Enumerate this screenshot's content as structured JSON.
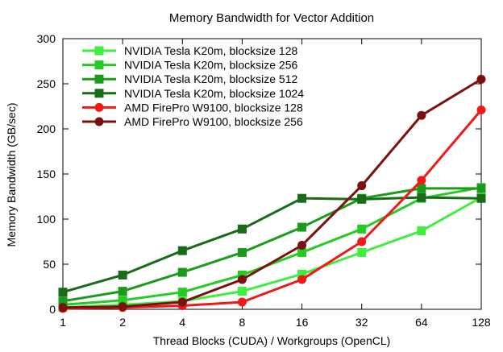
{
  "chart_data": {
    "type": "line",
    "title": "Memory Bandwidth for Vector Addition",
    "xlabel": "Thread Blocks (CUDA) / Workgroups (OpenCL)",
    "ylabel": "Memory Bandwidth (GB/sec)",
    "x_scale": "log2",
    "categories": [
      "1",
      "2",
      "4",
      "8",
      "16",
      "32",
      "64",
      "128"
    ],
    "x": [
      1,
      2,
      4,
      8,
      16,
      32,
      64,
      128
    ],
    "ylim": [
      0,
      300
    ],
    "yticks": [
      "0",
      "50",
      "100",
      "150",
      "200",
      "250",
      "300"
    ],
    "ytick_values": [
      0,
      50,
      100,
      150,
      200,
      250,
      300
    ],
    "grid": false,
    "legend_position": "top-left",
    "series": [
      {
        "name": "NVIDIA Tesla K20m, blocksize 128",
        "marker": "square",
        "color": "#40ee40",
        "values": [
          2,
          5,
          9,
          20,
          39,
          63,
          87,
          124
        ]
      },
      {
        "name": "NVIDIA Tesla K20m, blocksize 256",
        "marker": "square",
        "color": "#22cc22",
        "values": [
          5,
          10,
          19,
          38,
          63,
          89,
          123,
          135
        ]
      },
      {
        "name": "NVIDIA Tesla K20m, blocksize 512",
        "marker": "square",
        "color": "#1a9c1a",
        "values": [
          9,
          20,
          41,
          63,
          91,
          123,
          134,
          134
        ]
      },
      {
        "name": "NVIDIA Tesla K20m, blocksize 1024",
        "marker": "square",
        "color": "#186b18",
        "values": [
          19,
          38,
          65,
          89,
          123,
          122,
          124,
          123
        ]
      },
      {
        "name": "AMD FirePro W9100, blocksize 128",
        "marker": "circle",
        "color": "#f21818",
        "values": [
          1,
          2,
          4,
          8,
          33,
          75,
          143,
          221
        ]
      },
      {
        "name": "AMD FirePro W9100, blocksize 256",
        "marker": "circle",
        "color": "#7b1010",
        "values": [
          2,
          3,
          8,
          33,
          71,
          137,
          215,
          255
        ]
      }
    ]
  }
}
